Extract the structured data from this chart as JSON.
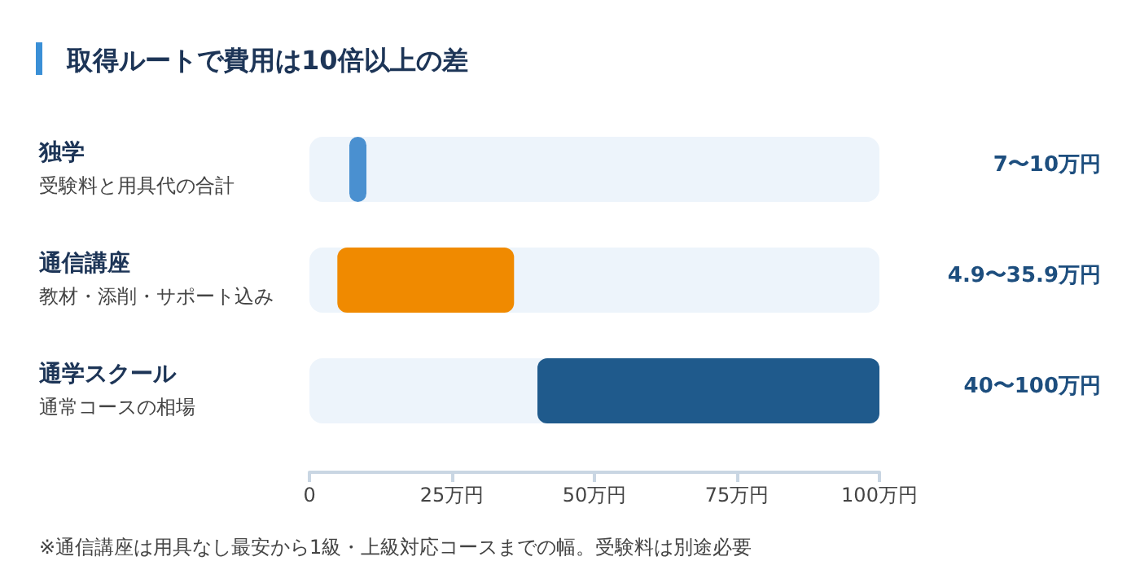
{
  "chart_data": {
    "type": "bar",
    "orientation": "horizontal",
    "title": "取得ルートで費用は10倍以上の差",
    "categories": [
      "独学",
      "通信講座",
      "通学スクール"
    ],
    "base": [
      7,
      4.9,
      40
    ],
    "values": [
      3,
      31,
      60
    ],
    "colors": [
      "#4a90d0",
      "#f08a00",
      "#1f5a8c"
    ],
    "xlim": [
      0,
      100
    ],
    "xticks": [
      {
        "value": 0,
        "label": "0"
      },
      {
        "value": 25,
        "label": "25万円"
      },
      {
        "value": 50,
        "label": "50万円"
      },
      {
        "value": 75,
        "label": "75万円"
      },
      {
        "value": 100,
        "label": "100万円"
      }
    ],
    "grid": false,
    "annotations": [
      "受験料と用具代の合計",
      "教材・添削・サポート込み",
      "通常コースの相場",
      "7〜10万円",
      "4.9〜35.9万円",
      "40〜100万円",
      "※通信講座は用具なし最安から1級・上級対応コースまでの幅。受験料は別途必要"
    ]
  }
}
